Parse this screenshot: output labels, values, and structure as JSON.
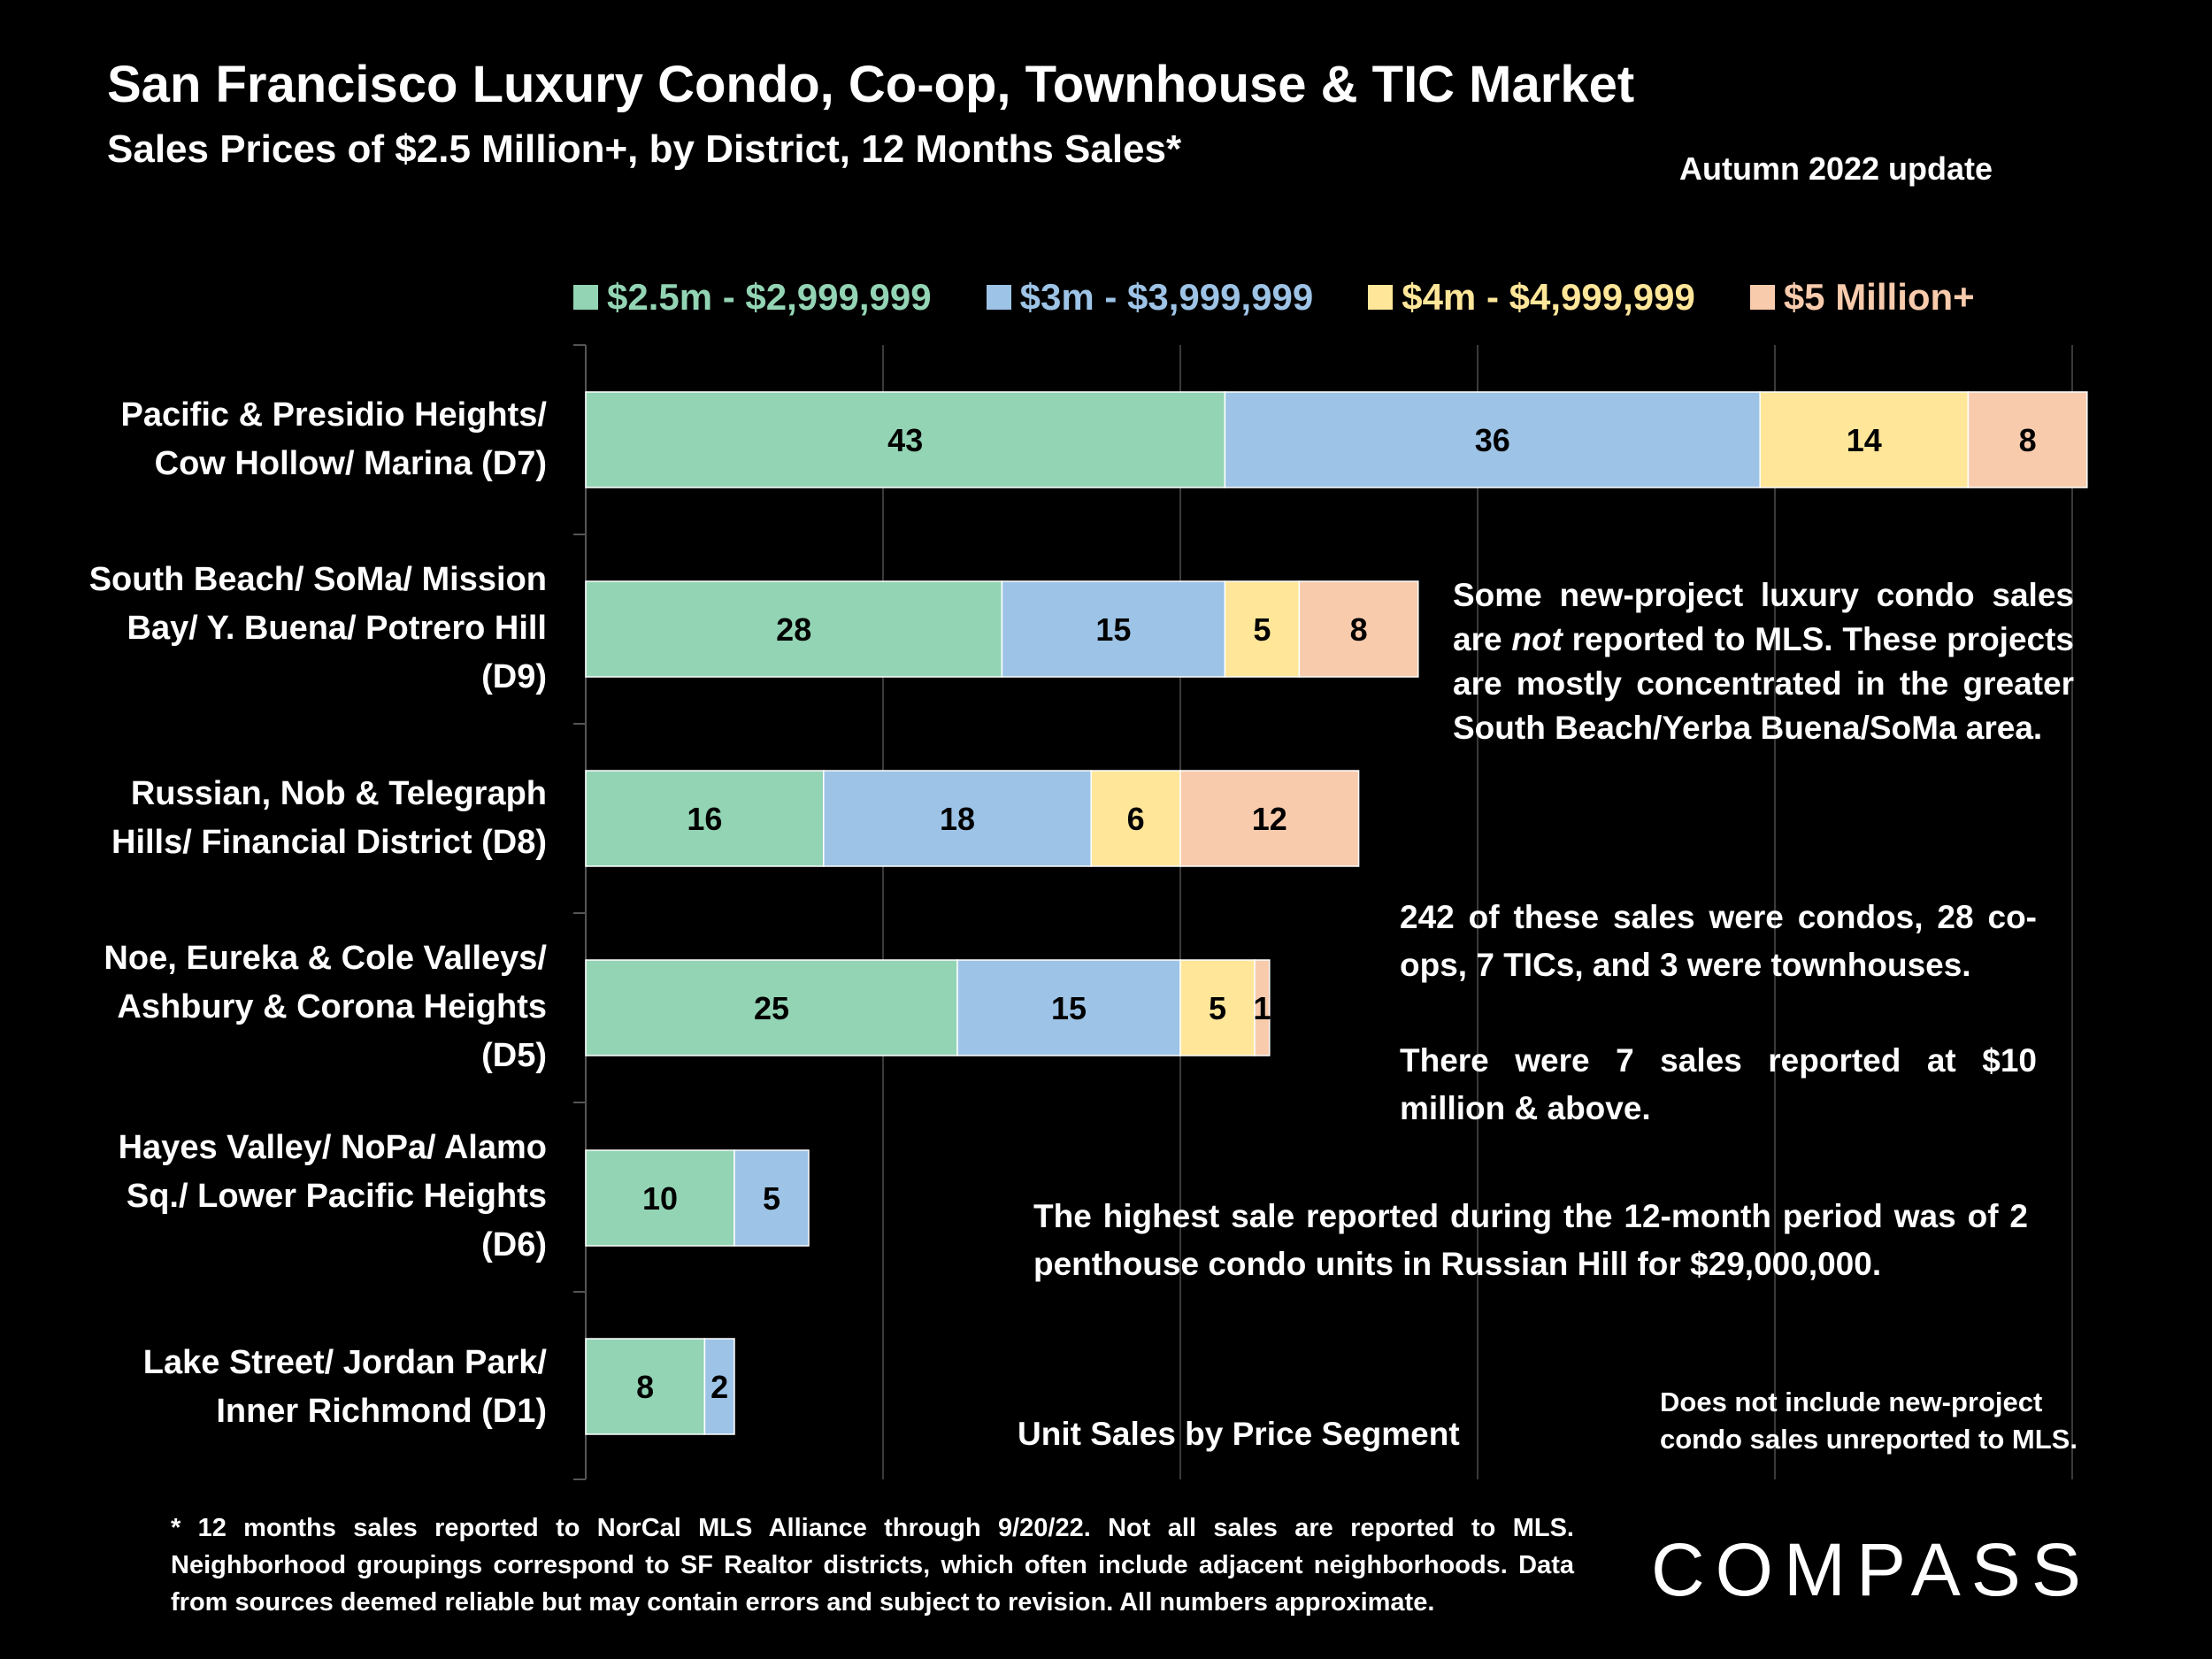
{
  "title": "San Francisco Luxury Condo, Co-op, Townhouse & TIC Market",
  "subtitle": "Sales Prices of $2.5 Million+, by District, 12 Months Sales*",
  "update_label": "Autumn 2022 update",
  "colors": {
    "background": "#000000",
    "seg1": "#93d4b4",
    "seg2": "#9dc3e6",
    "seg3": "#ffe699",
    "seg4": "#f8cbad",
    "gridline": "#3a3a3a"
  },
  "chart_data": {
    "type": "bar",
    "orientation": "horizontal",
    "stacked": true,
    "title": "San Francisco Luxury Condo, Co-op, Townhouse & TIC Market",
    "subtitle": "Sales Prices of $2.5 Million+, by District, 12 Months Sales*",
    "xlabel": "Unit Sales by Price Segment",
    "ylabel": "",
    "xlim": [
      0,
      100
    ],
    "grid": true,
    "legend_position": "top",
    "categories": [
      "Pacific & Presidio Heights/ Cow Hollow/ Marina (D7)",
      "South Beach/ SoMa/ Mission Bay/ Y. Buena/ Potrero Hill (D9)",
      "Russian, Nob & Telegraph Hills/ Financial District (D8)",
      "Noe, Eureka & Cole Valleys/ Ashbury & Corona Heights (D5)",
      "Hayes Valley/ NoPa/ Alamo Sq./ Lower Pacific Heights (D6)",
      "Lake Street/ Jordan Park/ Inner Richmond (D1)"
    ],
    "series": [
      {
        "name": "$2.5m - $2,999,999",
        "color": "#93d4b4",
        "values": [
          43,
          28,
          16,
          25,
          10,
          8
        ]
      },
      {
        "name": "$3m - $3,999,999",
        "color": "#9dc3e6",
        "values": [
          36,
          15,
          18,
          15,
          5,
          2
        ]
      },
      {
        "name": "$4m - $4,999,999",
        "color": "#ffe699",
        "values": [
          14,
          5,
          6,
          5,
          0,
          0
        ]
      },
      {
        "name": "$5 Million+",
        "color": "#f8cbad",
        "values": [
          8,
          8,
          12,
          1,
          0,
          0
        ]
      }
    ]
  },
  "category_lines": [
    [
      "Pacific & Presidio Heights/",
      "Cow Hollow/ Marina (D7)"
    ],
    [
      "South Beach/ SoMa/ Mission",
      "Bay/ Y. Buena/ Potrero Hill",
      "(D9)"
    ],
    [
      "Russian, Nob & Telegraph",
      "Hills/ Financial District (D8)"
    ],
    [
      "Noe, Eureka & Cole Valleys/",
      "Ashbury & Corona Heights",
      "(D5)"
    ],
    [
      "Hayes Valley/ NoPa/ Alamo",
      "Sq./ Lower Pacific Heights",
      "(D6)"
    ],
    [
      "Lake Street/ Jordan Park/",
      "Inner Richmond (D1)"
    ]
  ],
  "annotations": {
    "new_project_pre": "Some new-project luxury condo sales are ",
    "new_project_not": "not",
    "new_project_post": " reported to MLS. These projects are mostly concentrated in the greater South Beach/Yerba Buena/SoMa area.",
    "breakdown": "242 of these sales were condos, 28 co-ops, 7 TICs, and 3 were townhouses.",
    "ten_million": "There were 7 sales reported at $10 million & above.",
    "highest_sale": "The highest sale reported during the 12-month period was of 2 penthouse condo units in Russian Hill for $29,000,000.",
    "unreported_note": "Does not include new-project condo sales unreported to MLS."
  },
  "footnote": "* 12 months sales reported to NorCal MLS Alliance through 9/20/22. Not all sales are reported to MLS. Neighborhood groupings correspond to SF Realtor districts, which often include adjacent neighborhoods. Data from sources deemed reliable but may contain errors and subject to revision. All numbers approximate.",
  "logo": "COMPASS"
}
